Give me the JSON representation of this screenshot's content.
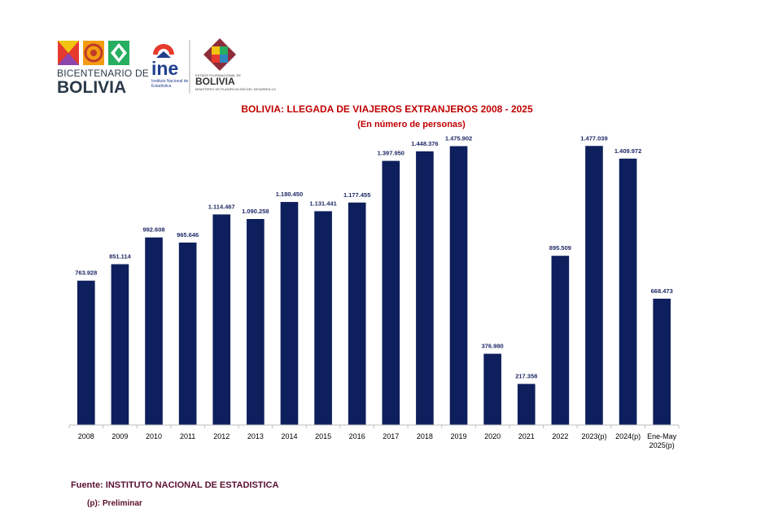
{
  "header": {
    "bicentenario_line1": "BICENTENARIO DE",
    "bicentenario_line2": "BOLIVIA",
    "ine_word": "ine",
    "ine_subtitle": "Instituto Nacional de Estadística",
    "ministry_line_top": "ESTADO PLURINACIONAL DE",
    "ministry_word": "BOLIVIA",
    "ministry_line_bottom": "MINISTERIO DE PLANIFICACIÓN DEL DESARROLLO"
  },
  "chart_data": {
    "type": "bar",
    "title": "BOLIVIA: LLEGADA DE VIAJEROS EXTRANJEROS  2008 - 2025",
    "subtitle": "(En número de personas)",
    "categories": [
      "2008",
      "2009",
      "2010",
      "2011",
      "2012",
      "2013",
      "2014",
      "2015",
      "2016",
      "2017",
      "2018",
      "2019",
      "2020",
      "2021",
      "2022",
      "2023(p)",
      "2024(p)",
      "Ene-May 2025(p)"
    ],
    "values": [
      763928,
      851114,
      992608,
      965646,
      1114467,
      1090258,
      1180450,
      1131441,
      1177455,
      1397950,
      1448376,
      1475902,
      376980,
      217358,
      895509,
      1477039,
      1409972,
      668473
    ],
    "value_labels": [
      "763.928",
      "851.114",
      "992.608",
      "965.646",
      "1.114.467",
      "1.090.258",
      "1.180.450",
      "1.131.441",
      "1.177.455",
      "1.397.950",
      "1.448.376",
      "1.475.902",
      "376.980",
      "217.358",
      "895.509",
      "1.477.039",
      "1.409.972",
      "668.473"
    ],
    "xlabel": "",
    "ylabel": "",
    "ylim": [
      0,
      1560000
    ],
    "grid": false,
    "bar_color": "#0d1f5c",
    "label_color": "#1f2a66"
  },
  "footer": {
    "source": "Fuente: INSTITUTO NACIONAL DE ESTADISTICA",
    "note": "(p): Preliminar"
  }
}
